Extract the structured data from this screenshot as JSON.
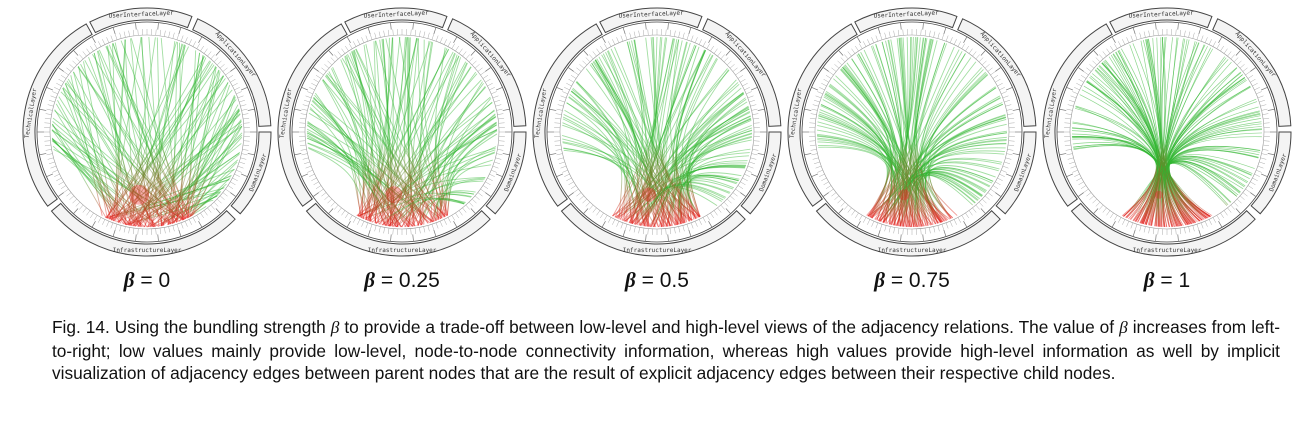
{
  "figure": {
    "ring_labels": {
      "top": "UserInterfaceLayer",
      "top_inner": "GUI",
      "top_right": "ApplicationLayer",
      "left": "TechnicalLayer",
      "right": "DomainLayer",
      "bottom": "InfrastructureLayer",
      "bottom_inner": "Infra"
    },
    "panels": [
      {
        "symbol": "β",
        "label": "= 0",
        "bundling": 0
      },
      {
        "symbol": "β",
        "label": "= 0.25",
        "bundling": 0.25
      },
      {
        "symbol": "β",
        "label": "= 0.5",
        "bundling": 0.5
      },
      {
        "symbol": "β",
        "label": "= 0.75",
        "bundling": 0.75
      },
      {
        "symbol": "β",
        "label": "= 1",
        "bundling": 1
      }
    ],
    "colors": {
      "edge_start": "#2fb52f",
      "edge_end": "#e8201f",
      "ring": "#444444"
    }
  },
  "caption": {
    "prefix": "Fig. 14.  Using the bundling strength ",
    "symbol": "β",
    "middle": " to provide a trade-off between low-level and high-level views of the adjacency relations.  The value of ",
    "rest": " increases from left-to-right; low values mainly provide low-level, node-to-node connectivity information, whereas high values provide high-level information as well by implicit visualization of adjacency edges between parent nodes that are the result of explicit adjacency edges between their respective child nodes."
  }
}
